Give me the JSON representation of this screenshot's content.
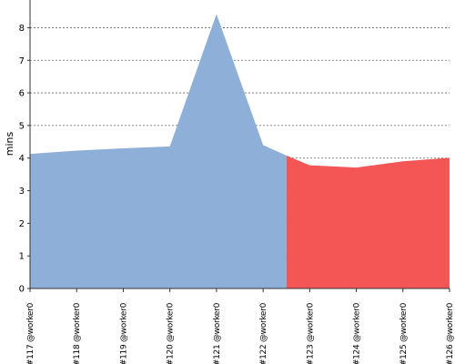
{
  "chart_data": {
    "type": "area",
    "ylabel": "mins",
    "xlabel": "",
    "ylim": [
      0,
      8.85
    ],
    "yticks": [
      0,
      1,
      2,
      3,
      4,
      5,
      6,
      7,
      8
    ],
    "grid": true,
    "categories": [
      "#117 @worker0",
      "#118 @worker0",
      "#119 @worker0",
      "#120 @worker0",
      "#121 @worker0",
      "#122 @worker0",
      "#123 @worker0",
      "#124 @worker0",
      "#125 @worker0",
      "#126 @worker0"
    ],
    "series": [
      {
        "color": "#8eb0d8",
        "x": [
          0,
          1,
          2,
          3,
          4,
          5,
          5.5
        ],
        "values": [
          4.13,
          4.23,
          4.3,
          4.36,
          8.42,
          4.4,
          4.08
        ]
      },
      {
        "color": "#f45656",
        "x": [
          5.5,
          6,
          7,
          8,
          9
        ],
        "values": [
          4.08,
          3.78,
          3.71,
          3.9,
          4.01
        ]
      }
    ]
  }
}
